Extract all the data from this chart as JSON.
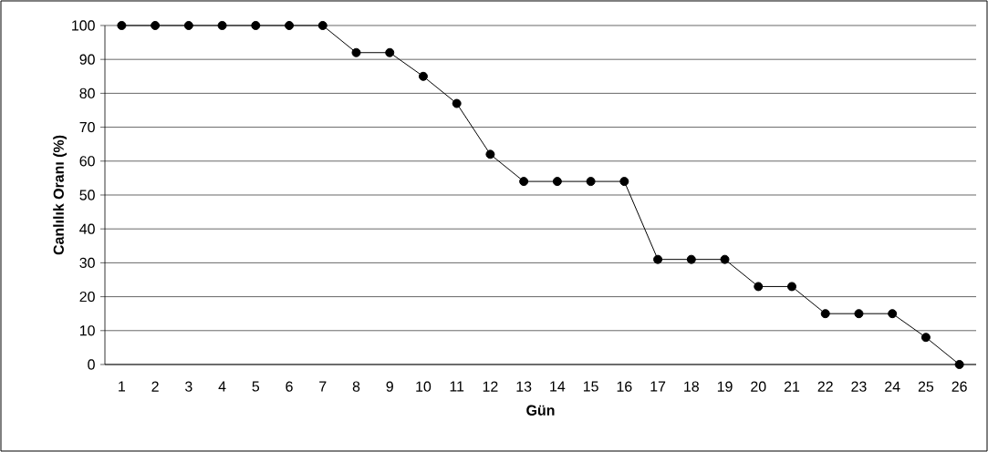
{
  "chart_data": {
    "type": "line",
    "xlabel": "Gün",
    "ylabel": "Canlılık Oranı (%)",
    "categories": [
      "1",
      "2",
      "3",
      "4",
      "5",
      "6",
      "7",
      "8",
      "9",
      "10",
      "11",
      "12",
      "13",
      "14",
      "15",
      "16",
      "17",
      "18",
      "19",
      "20",
      "21",
      "22",
      "23",
      "24",
      "25",
      "26"
    ],
    "series": [
      {
        "color": "#000000",
        "values": [
          100,
          100,
          100,
          100,
          100,
          100,
          100,
          92,
          92,
          85,
          77,
          62,
          54,
          54,
          54,
          54,
          31,
          31,
          31,
          23,
          23,
          15,
          15,
          15,
          8,
          0
        ]
      }
    ],
    "ylim": [
      0,
      100
    ],
    "yticks": [
      0,
      10,
      20,
      30,
      40,
      50,
      60,
      70,
      80,
      90,
      100
    ],
    "grid": "y",
    "marker": "circle",
    "line_style": "solid"
  }
}
